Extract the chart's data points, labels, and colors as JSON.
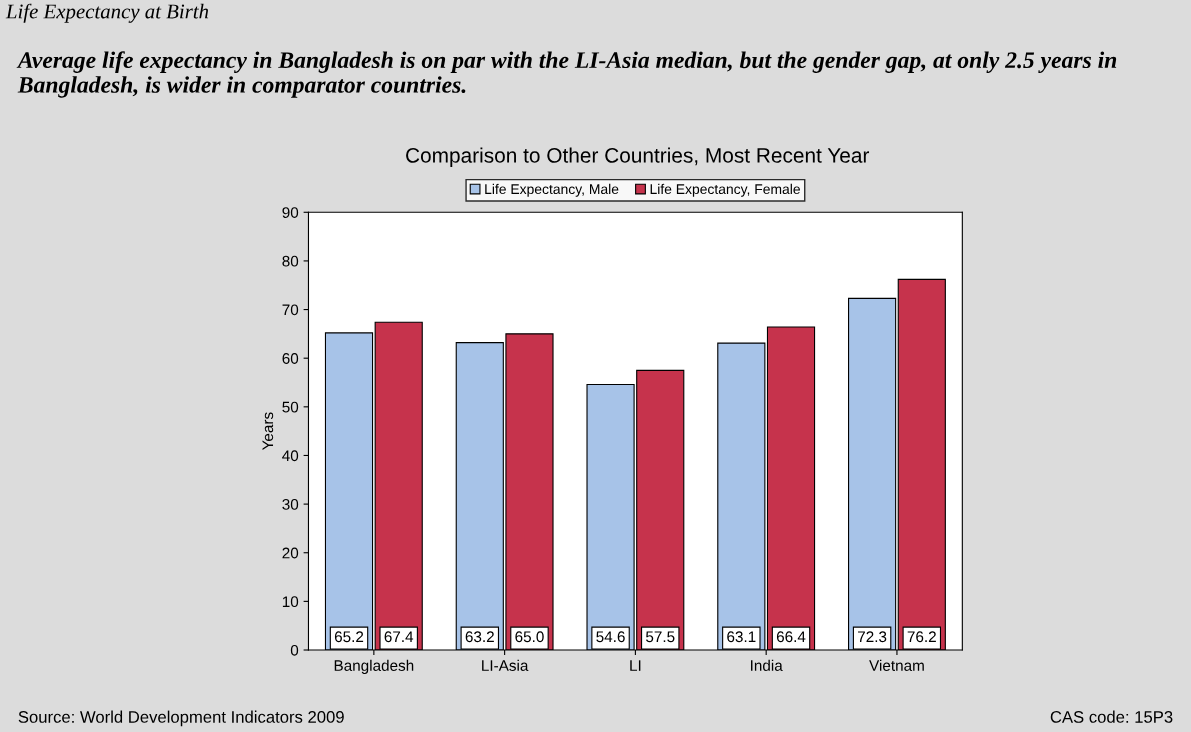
{
  "chart_data": {
    "type": "bar",
    "title": "Comparison to Other Countries, Most Recent Year",
    "subtitle": "Average life expectancy in Bangladesh is on par with the LI-Asia median, but the gender gap, at only 2.5 years in Bangladesh, is wider in comparator countries.",
    "ylabel": "Years",
    "annotations": [
      "Life Expectancy at Birth",
      "Source: World Development Indicators 2009",
      "CAS code: 15P3"
    ],
    "categories": [
      "Bangladesh",
      "LI-Asia",
      "LI",
      "India",
      "Vietnam"
    ],
    "series": [
      {
        "name": "Life Expectancy, Male",
        "color": "#a7c3e8",
        "values": [
          65.2,
          63.2,
          54.6,
          63.1,
          72.3
        ],
        "value_labels": [
          "65.2",
          "63.2",
          "54.6",
          "63.1",
          "72.3"
        ]
      },
      {
        "name": "Life Expectancy, Female",
        "color": "#c6334c",
        "values": [
          67.4,
          65.0,
          57.5,
          66.4,
          76.2
        ],
        "value_labels": [
          "67.4",
          "65.0",
          "57.5",
          "66.4",
          "76.2"
        ]
      }
    ],
    "ylim": [
      0,
      90
    ],
    "yticks": [
      0,
      10,
      20,
      30,
      40,
      50,
      60,
      70,
      80,
      90
    ],
    "grid": false,
    "legend": "top"
  }
}
